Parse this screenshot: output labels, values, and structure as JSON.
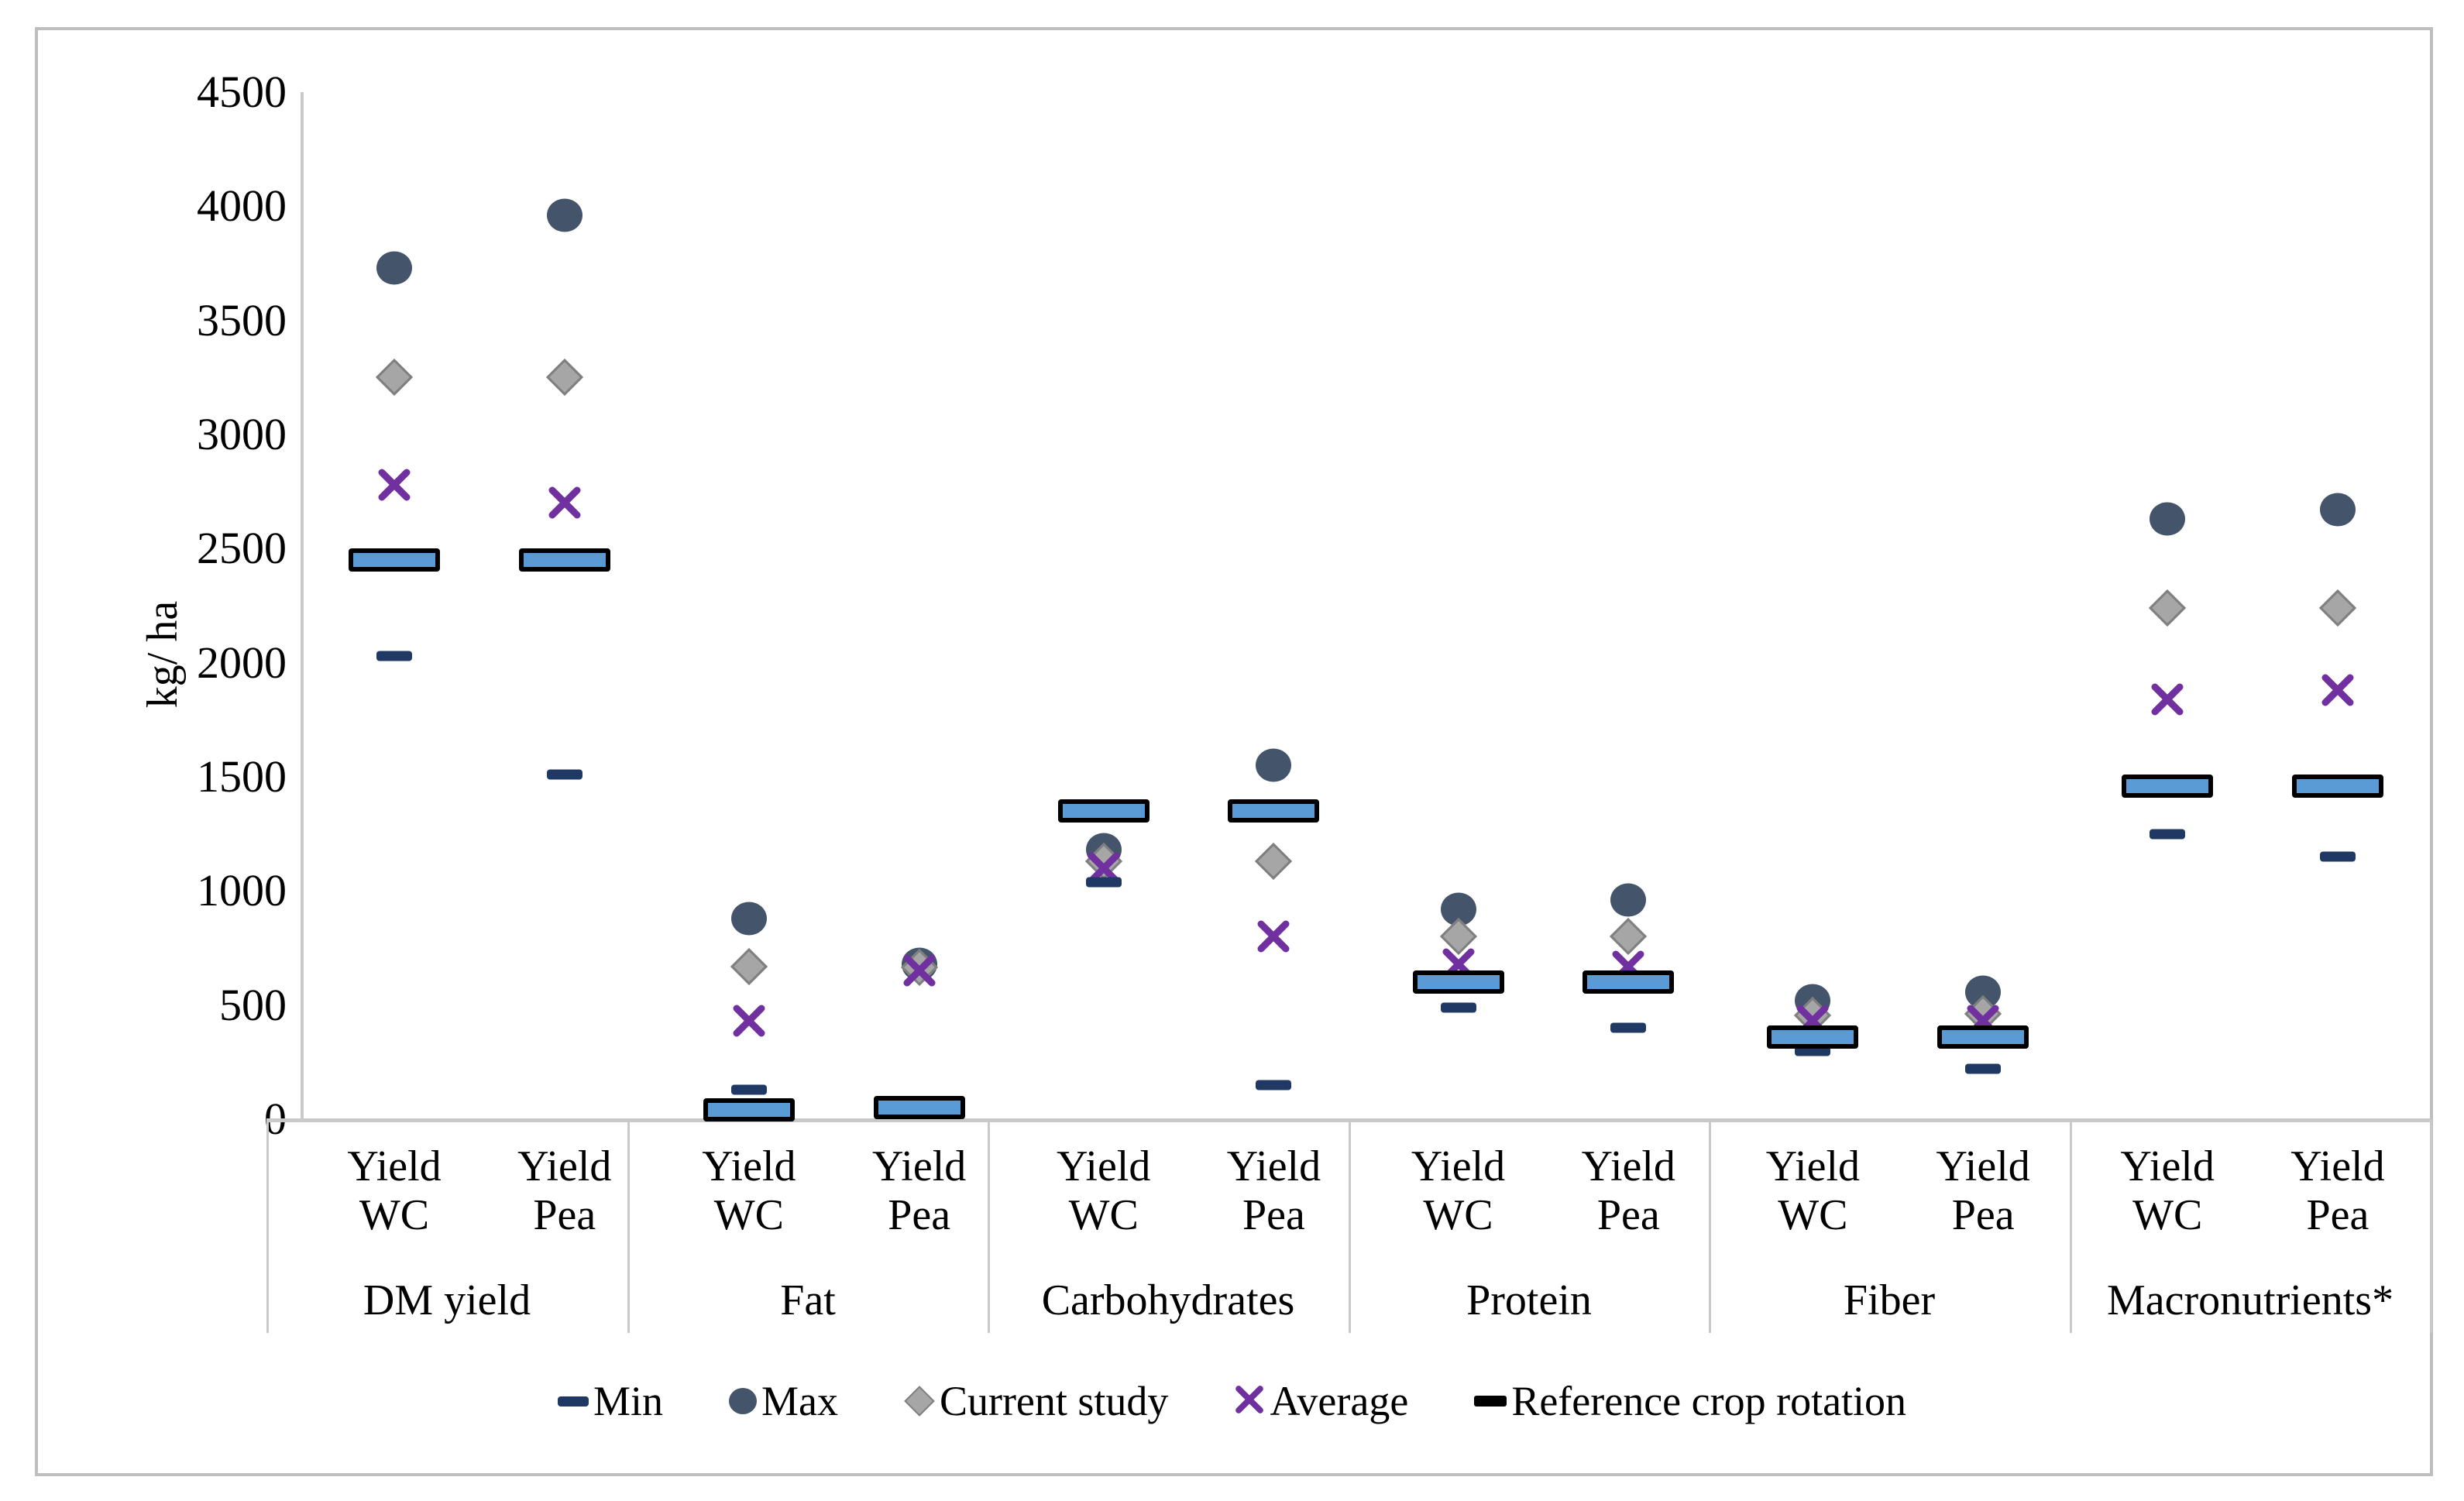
{
  "figure": {
    "colors": {
      "max": "#44546A",
      "min": "#1F3864",
      "current_study": "#A6A6A6",
      "current_study_border": "#7F7F7F",
      "average": "#7030A0",
      "reference_fill": "#5B9BD5",
      "reference_border": "#000000",
      "axis_line": "#C9C9C9",
      "text": "#000000"
    }
  },
  "chart_data": {
    "type": "scatter",
    "title": "",
    "xlabel": "",
    "ylabel": "kg/ ha",
    "ylim": [
      0,
      4500
    ],
    "ytick_step": 500,
    "yticks": [
      0,
      500,
      1000,
      1500,
      2000,
      2500,
      3000,
      3500,
      4000,
      4500
    ],
    "grid": false,
    "legend_position": "bottom",
    "series_names": [
      "Min",
      "Max",
      "Current study",
      "Average",
      "Reference crop rotation"
    ],
    "groups": [
      {
        "label": "DM yield",
        "series": [
          {
            "name": "Yield WC",
            "label_lines": [
              "Yield",
              "WC"
            ],
            "values": {
              "min": 2030,
              "max": 3730,
              "current_study": 3250,
              "average": 2780,
              "reference": 2450
            }
          },
          {
            "name": "Yield Pea",
            "label_lines": [
              "Yield",
              "Pea"
            ],
            "values": {
              "min": 1510,
              "max": 3960,
              "current_study": 3250,
              "average": 2700,
              "reference": 2450
            }
          }
        ]
      },
      {
        "label": "Fat",
        "series": [
          {
            "name": "Yield WC",
            "label_lines": [
              "Yield",
              "WC"
            ],
            "values": {
              "min": 130,
              "max": 880,
              "current_study": 670,
              "average": 430,
              "reference": 40
            }
          },
          {
            "name": "Yield Pea",
            "label_lines": [
              "Yield",
              "Pea"
            ],
            "values": {
              "min": 50,
              "max": 680,
              "current_study": 665,
              "average": 650,
              "reference": 50
            }
          }
        ]
      },
      {
        "label": "Carbohydrates",
        "series": [
          {
            "name": "Yield WC",
            "label_lines": [
              "Yield",
              "WC"
            ],
            "values": {
              "min": 1040,
              "max": 1180,
              "current_study": 1130,
              "average": 1100,
              "reference": 1350
            }
          },
          {
            "name": "Yield Pea",
            "label_lines": [
              "Yield",
              "Pea"
            ],
            "values": {
              "min": 150,
              "max": 1550,
              "current_study": 1130,
              "average": 800,
              "reference": 1350
            }
          }
        ]
      },
      {
        "label": "Protein",
        "series": [
          {
            "name": "Yield WC",
            "label_lines": [
              "Yield",
              "WC"
            ],
            "values": {
              "min": 490,
              "max": 920,
              "current_study": 800,
              "average": 680,
              "reference": 600
            }
          },
          {
            "name": "Yield Pea",
            "label_lines": [
              "Yield",
              "Pea"
            ],
            "values": {
              "min": 400,
              "max": 960,
              "current_study": 800,
              "average": 670,
              "reference": 600
            }
          }
        ]
      },
      {
        "label": "Fiber",
        "series": [
          {
            "name": "Yield WC",
            "label_lines": [
              "Yield",
              "WC"
            ],
            "values": {
              "min": 300,
              "max": 520,
              "current_study": 455,
              "average": 430,
              "reference": 360
            }
          },
          {
            "name": "Yield Pea",
            "label_lines": [
              "Yield",
              "Pea"
            ],
            "values": {
              "min": 220,
              "max": 555,
              "current_study": 460,
              "average": 430,
              "reference": 360
            }
          }
        ]
      },
      {
        "label": "Macronutrients*",
        "series": [
          {
            "name": "Yield WC",
            "label_lines": [
              "Yield",
              "WC"
            ],
            "values": {
              "min": 1250,
              "max": 2630,
              "current_study": 2240,
              "average": 1840,
              "reference": 1460
            }
          },
          {
            "name": "Yield Pea",
            "label_lines": [
              "Yield",
              "Pea"
            ],
            "values": {
              "min": 1150,
              "max": 2670,
              "current_study": 2240,
              "average": 1880,
              "reference": 1460
            }
          }
        ]
      }
    ],
    "legend": [
      {
        "label": "Min",
        "marker": "dash",
        "color": "#1F3864"
      },
      {
        "label": "Max",
        "marker": "circle",
        "color": "#44546A"
      },
      {
        "label": "Current study",
        "marker": "diamond",
        "color": "#A6A6A6"
      },
      {
        "label": "Average",
        "marker": "x",
        "color": "#7030A0"
      },
      {
        "label": "Reference crop rotation",
        "marker": "bar",
        "color": "#000000"
      }
    ]
  }
}
